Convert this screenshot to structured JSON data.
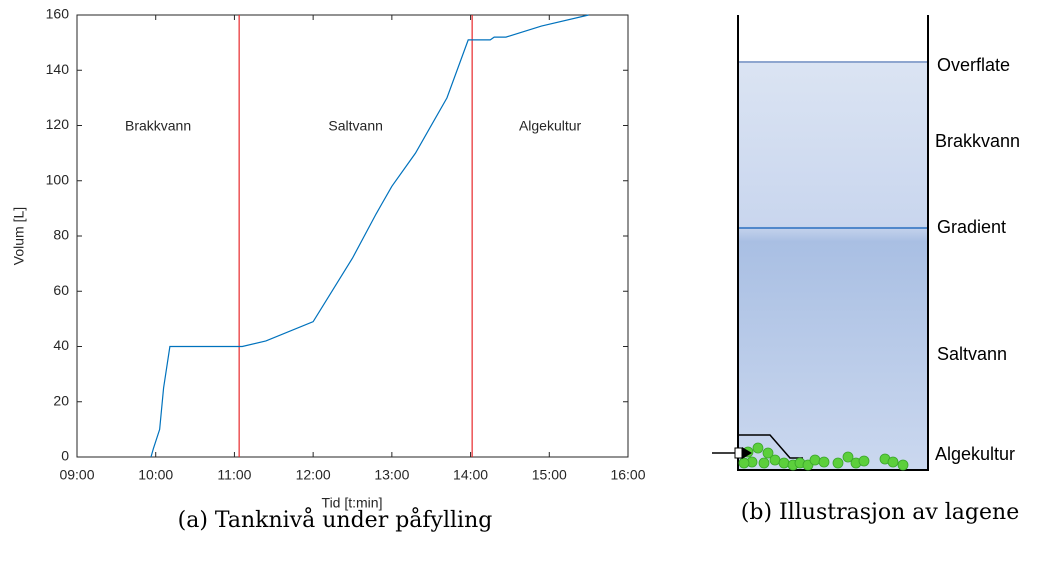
{
  "chart_data": {
    "type": "line",
    "caption": "(a) Tanknivå under påfylling",
    "xlabel": "Tid [t:min]",
    "ylabel": "Volum [L]",
    "x": [
      9.94,
      9.97,
      10.05,
      10.1,
      10.18,
      11.1,
      11.4,
      12.0,
      12.5,
      12.8,
      13.0,
      13.3,
      13.7,
      13.97,
      14.25,
      14.3,
      14.45,
      14.9,
      15.5
    ],
    "values": [
      0,
      3,
      10,
      25,
      40,
      40,
      42,
      49,
      72,
      88,
      98,
      110,
      130,
      151,
      151,
      152,
      152,
      156,
      160
    ],
    "color": "#0072bd",
    "vlines": [
      11.06,
      14.02
    ],
    "vline_color": "#e8282b",
    "annotations": [
      "Brakkvann",
      "Saltvann",
      "Algekultur"
    ],
    "xlim": [
      9,
      16
    ],
    "xticks": [
      {
        "value": 9,
        "label": "09:00"
      },
      {
        "value": 10,
        "label": "10:00"
      },
      {
        "value": 11,
        "label": "11:00"
      },
      {
        "value": 12,
        "label": "12:00"
      },
      {
        "value": 13,
        "label": "13:00"
      },
      {
        "value": 14,
        "label": "14:00"
      },
      {
        "value": 15,
        "label": "15:00"
      },
      {
        "value": 16,
        "label": "16:00"
      }
    ],
    "ylim": [
      0,
      160
    ],
    "yticks": [
      0,
      20,
      40,
      60,
      80,
      100,
      120,
      140,
      160
    ],
    "grid": false
  },
  "diagram": {
    "labels": [
      "Overflate",
      "Brakkvann",
      "Gradient",
      "Saltvann",
      "Algekultur"
    ],
    "caption": "(b) Illustrasjon av lagene"
  }
}
